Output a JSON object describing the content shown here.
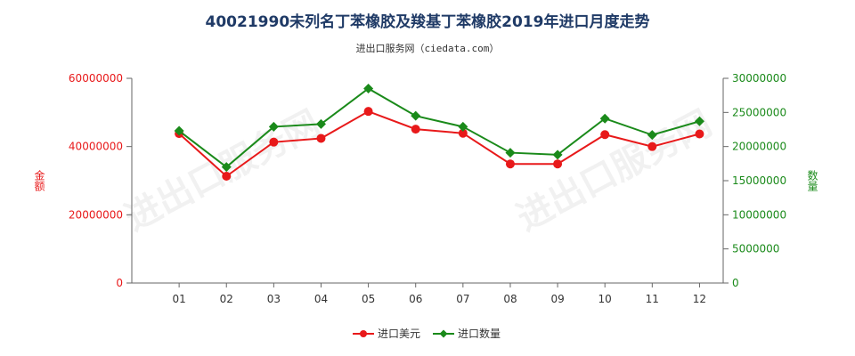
{
  "chart_data": {
    "type": "line",
    "title": "40021990未列名丁苯橡胶及羧基丁苯橡胶2019年进口月度走势",
    "subtitle": "进出口服务网（ciedata.com）",
    "watermark": "进出口服务网",
    "categories": [
      "01",
      "02",
      "03",
      "04",
      "05",
      "06",
      "07",
      "08",
      "09",
      "10",
      "11",
      "12"
    ],
    "y_left": {
      "label": "金额",
      "ylim": [
        0,
        60000000
      ],
      "ticks": [
        "0",
        "20000000",
        "40000000",
        "60000000"
      ],
      "tick_values": [
        0,
        20000000,
        40000000,
        60000000
      ],
      "color": "#e8191a"
    },
    "y_right": {
      "label": "数量",
      "ylim": [
        0,
        30000000
      ],
      "ticks": [
        "0",
        "5000000",
        "10000000",
        "15000000",
        "20000000",
        "25000000",
        "30000000"
      ],
      "tick_values": [
        0,
        5000000,
        10000000,
        15000000,
        20000000,
        25000000,
        30000000
      ],
      "color": "#1a8a1a"
    },
    "series": [
      {
        "name": "进口美元",
        "axis": "left",
        "color": "#e8191a",
        "marker": "circle",
        "values": [
          43800000,
          31300000,
          41300000,
          42400000,
          50300000,
          45100000,
          43900000,
          34900000,
          34900000,
          43500000,
          40000000,
          43700000
        ]
      },
      {
        "name": "进口数量",
        "axis": "right",
        "color": "#1a8a1a",
        "marker": "diamond",
        "values": [
          22300000,
          17000000,
          22900000,
          23300000,
          28500000,
          24500000,
          22900000,
          19100000,
          18800000,
          24100000,
          21700000,
          23700000
        ]
      }
    ],
    "grid": false,
    "legend_position": "bottom"
  }
}
